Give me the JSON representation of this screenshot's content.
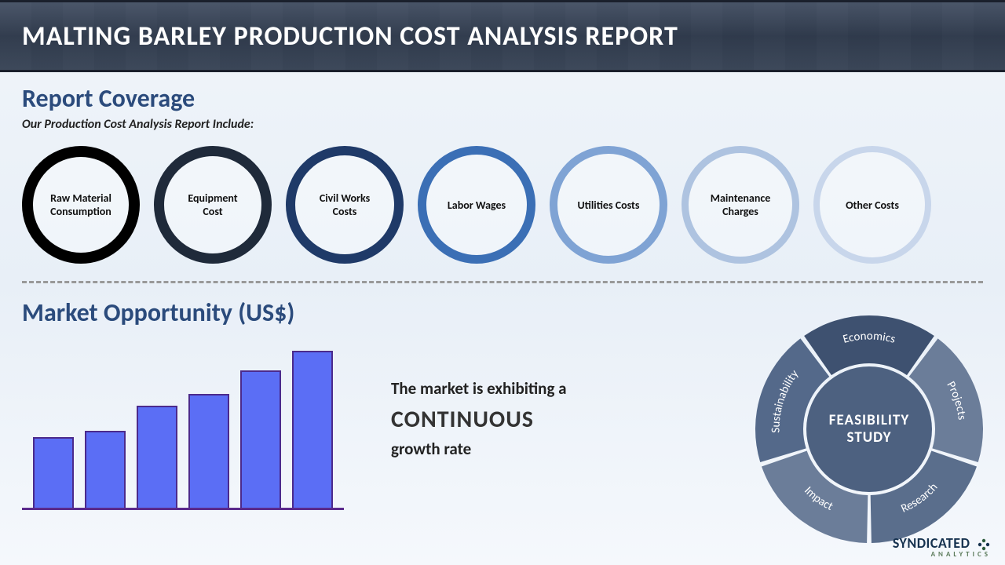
{
  "header": {
    "title": "MALTING BARLEY PRODUCTION COST ANALYSIS REPORT"
  },
  "report_coverage": {
    "heading": "Report Coverage",
    "subheading": "Our Production Cost Analysis Report Include:",
    "circles": [
      {
        "label": "Raw Material Consumption",
        "border_color": "#000000",
        "border_width": 14
      },
      {
        "label": "Equipment Cost",
        "border_color": "#1f2a3a",
        "border_width": 13
      },
      {
        "label": "Civil Works Costs",
        "border_color": "#1f3a68",
        "border_width": 12
      },
      {
        "label": "Labor Wages",
        "border_color": "#3b6fb5",
        "border_width": 11
      },
      {
        "label": "Utilities Costs",
        "border_color": "#7fa3d4",
        "border_width": 10
      },
      {
        "label": "Maintenance Charges",
        "border_color": "#aec3e0",
        "border_width": 9
      },
      {
        "label": "Other Costs",
        "border_color": "#c8d6eb",
        "border_width": 8
      }
    ]
  },
  "market_opportunity": {
    "heading": "Market Opportunity (US$)",
    "chart": {
      "type": "bar",
      "values": [
        90,
        98,
        130,
        145,
        175,
        200
      ],
      "bar_color": "#5b6ef5",
      "bar_border_color": "#4b2a8c",
      "axis_color": "#5b2a8c",
      "ylim": [
        0,
        200
      ]
    },
    "text_line1": "The market is exhibiting a",
    "text_big": "CONTINUOUS",
    "text_line2": "growth rate"
  },
  "feasibility_wheel": {
    "center_label_1": "FEASIBILITY",
    "center_label_2": "STUDY",
    "center_color": "#4d6180",
    "segments": [
      {
        "label": "Economics",
        "color": "#3e5170"
      },
      {
        "label": "Projects",
        "color": "#6b7d99"
      },
      {
        "label": "Research",
        "color": "#5a6e8c"
      },
      {
        "label": "Impact",
        "color": "#6b7d99"
      },
      {
        "label": "Sustainability",
        "color": "#54698a"
      }
    ],
    "text_color": "#ffffff",
    "outer_radius": 145,
    "inner_radius": 84
  },
  "logo": {
    "main": "SYNDICATED",
    "sub": "ANALYTICS"
  }
}
